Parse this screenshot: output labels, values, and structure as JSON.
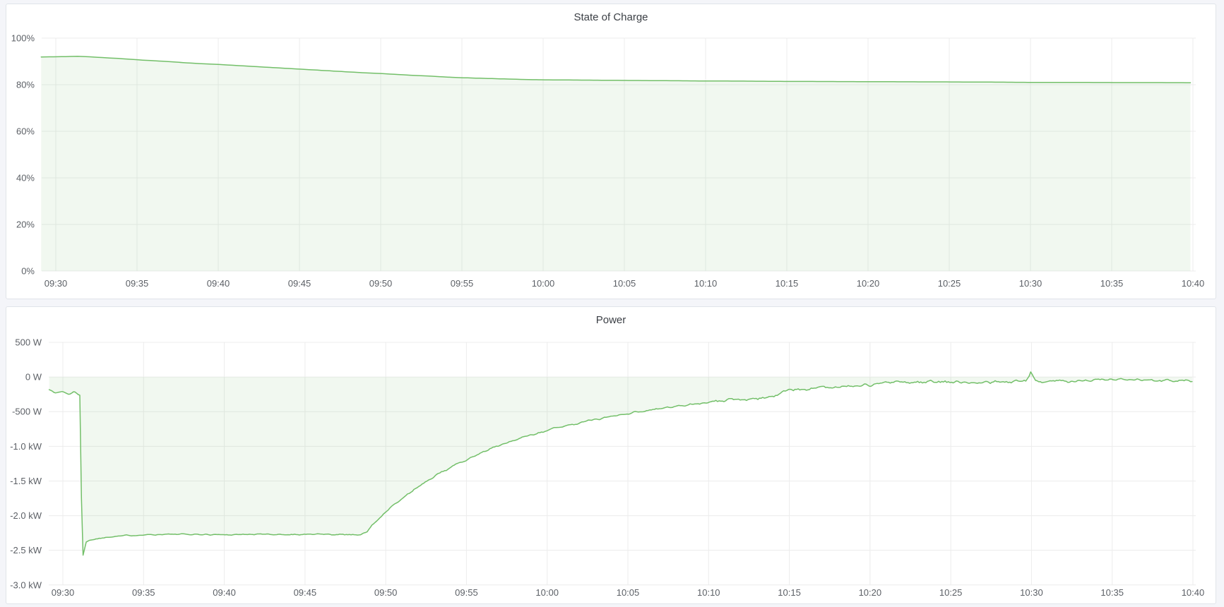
{
  "app": {
    "theme_background": "#f4f5f9",
    "panel_background": "#ffffff",
    "panel_border_color": "#e0e4e9",
    "grid_color": "#ececec",
    "axis_text_color": "#5c6066",
    "title_text_color": "#3b3f45",
    "accent_green": "#73bf69"
  },
  "panels": [
    {
      "title": "State of Charge"
    },
    {
      "title": "Power"
    }
  ],
  "chart_data": [
    {
      "type": "area",
      "title": "State of Charge",
      "xlabel": "",
      "ylabel": "",
      "legend": "none",
      "grid": true,
      "ylim": [
        0,
        100
      ],
      "y_ticks": [
        {
          "label": "0%",
          "value": 0
        },
        {
          "label": "20%",
          "value": 20
        },
        {
          "label": "40%",
          "value": 40
        },
        {
          "label": "60%",
          "value": 60
        },
        {
          "label": "80%",
          "value": 80
        },
        {
          "label": "100%",
          "value": 100
        }
      ],
      "x_ticks": [
        "09:30",
        "09:35",
        "09:40",
        "09:45",
        "09:50",
        "09:55",
        "10:00",
        "10:05",
        "10:10",
        "10:15",
        "10:20",
        "10:25",
        "10:30",
        "10:35",
        "10:40"
      ],
      "x_tick_interval_minutes": 5,
      "xlim_minutes": [
        -0.9,
        70
      ],
      "series": [
        {
          "name": "State of Charge",
          "unit": "percent",
          "color": "#73bf69",
          "fill_opacity": 0.1,
          "baseline_value": 0,
          "keypoints": [
            [
              -0.9,
              91.9
            ],
            [
              0,
              92.0
            ],
            [
              0.8,
              92.1
            ],
            [
              1.4,
              92.2
            ],
            [
              2,
              92.0
            ],
            [
              3,
              91.6
            ],
            [
              4,
              91.2
            ],
            [
              5,
              90.7
            ],
            [
              6,
              90.3
            ],
            [
              7,
              89.9
            ],
            [
              8,
              89.4
            ],
            [
              9,
              89.0
            ],
            [
              10,
              88.7
            ],
            [
              11,
              88.3
            ],
            [
              12,
              87.9
            ],
            [
              13,
              87.5
            ],
            [
              14,
              87.1
            ],
            [
              15,
              86.7
            ],
            [
              16,
              86.3
            ],
            [
              17,
              85.9
            ],
            [
              18,
              85.5
            ],
            [
              19,
              85.1
            ],
            [
              20,
              84.8
            ],
            [
              21,
              84.4
            ],
            [
              22,
              84.0
            ],
            [
              23,
              83.7
            ],
            [
              24,
              83.3
            ],
            [
              25,
              83.0
            ],
            [
              26,
              82.8
            ],
            [
              27,
              82.6
            ],
            [
              28,
              82.4
            ],
            [
              29,
              82.2
            ],
            [
              30,
              82.1
            ],
            [
              31,
              82.05
            ],
            [
              32,
              82.0
            ],
            [
              33,
              81.95
            ],
            [
              34,
              81.9
            ],
            [
              35,
              81.85
            ],
            [
              36,
              81.8
            ],
            [
              37,
              81.75
            ],
            [
              38,
              81.7
            ],
            [
              39,
              81.65
            ],
            [
              40,
              81.6
            ],
            [
              42,
              81.55
            ],
            [
              44,
              81.45
            ],
            [
              45,
              81.4
            ],
            [
              46,
              81.4
            ],
            [
              48,
              81.35
            ],
            [
              50,
              81.3
            ],
            [
              52,
              81.25
            ],
            [
              54,
              81.2
            ],
            [
              55,
              81.2
            ],
            [
              56,
              81.15
            ],
            [
              58,
              81.1
            ],
            [
              60,
              81.0
            ],
            [
              62,
              81.0
            ],
            [
              64,
              80.95
            ],
            [
              66,
              80.9
            ],
            [
              68,
              80.9
            ],
            [
              70,
              80.85
            ]
          ]
        }
      ]
    },
    {
      "type": "area",
      "title": "Power",
      "xlabel": "",
      "ylabel": "",
      "legend": "none",
      "grid": true,
      "ylim": [
        -3000,
        500
      ],
      "y_ticks": [
        {
          "label": "500 W",
          "value": 500
        },
        {
          "label": "0 W",
          "value": 0
        },
        {
          "label": "-500 W",
          "value": -500
        },
        {
          "label": "-1.0 kW",
          "value": -1000
        },
        {
          "label": "-1.5 kW",
          "value": -1500
        },
        {
          "label": "-2.0 kW",
          "value": -2000
        },
        {
          "label": "-2.5 kW",
          "value": -2500
        },
        {
          "label": "-3.0 kW",
          "value": -3000
        }
      ],
      "x_ticks": [
        "09:30",
        "09:35",
        "09:40",
        "09:45",
        "09:50",
        "09:55",
        "10:00",
        "10:05",
        "10:10",
        "10:15",
        "10:20",
        "10:25",
        "10:30",
        "10:35",
        "10:40"
      ],
      "x_tick_interval_minutes": 5,
      "xlim_minutes": [
        -0.85,
        70
      ],
      "series": [
        {
          "name": "Power",
          "unit": "watt",
          "color": "#73bf69",
          "fill_opacity": 0.1,
          "baseline_value": 0,
          "noise": {
            "seed": 1337,
            "step_minutes": 0.1,
            "zones": [
              {
                "from": -0.9,
                "to": 1.05,
                "amp": 14
              },
              {
                "from": 1.05,
                "to": 1.7,
                "amp": 0
              },
              {
                "from": 1.7,
                "to": 18.5,
                "amp": 13
              },
              {
                "from": 18.5,
                "to": 40,
                "amp": 20
              },
              {
                "from": 40,
                "to": 70,
                "amp": 32
              }
            ]
          },
          "keypoints": [
            [
              -0.85,
              -180
            ],
            [
              -0.5,
              -230
            ],
            [
              0,
              -210
            ],
            [
              0.4,
              -250
            ],
            [
              0.7,
              -215
            ],
            [
              1.0,
              -255
            ],
            [
              1.1,
              -270
            ],
            [
              1.18,
              -2640
            ],
            [
              1.3,
              -2520
            ],
            [
              1.45,
              -2380
            ],
            [
              1.7,
              -2350
            ],
            [
              2.2,
              -2330
            ],
            [
              3,
              -2300
            ],
            [
              4,
              -2285
            ],
            [
              5,
              -2275
            ],
            [
              6.5,
              -2270
            ],
            [
              8,
              -2270
            ],
            [
              10,
              -2275
            ],
            [
              12,
              -2268
            ],
            [
              14,
              -2272
            ],
            [
              16,
              -2268
            ],
            [
              17.5,
              -2272
            ],
            [
              18.5,
              -2272
            ],
            [
              18.8,
              -2240
            ],
            [
              19.2,
              -2130
            ],
            [
              19.6,
              -2040
            ],
            [
              20,
              -1950
            ],
            [
              20.5,
              -1850
            ],
            [
              21,
              -1760
            ],
            [
              21.5,
              -1670
            ],
            [
              22,
              -1590
            ],
            [
              22.5,
              -1510
            ],
            [
              23,
              -1440
            ],
            [
              23.5,
              -1370
            ],
            [
              24,
              -1305
            ],
            [
              24.5,
              -1245
            ],
            [
              25,
              -1190
            ],
            [
              25.5,
              -1135
            ],
            [
              26,
              -1085
            ],
            [
              26.5,
              -1035
            ],
            [
              27,
              -990
            ],
            [
              27.5,
              -950
            ],
            [
              28,
              -910
            ],
            [
              28.5,
              -870
            ],
            [
              29,
              -835
            ],
            [
              29.5,
              -800
            ],
            [
              30,
              -770
            ],
            [
              30.5,
              -740
            ],
            [
              31,
              -710
            ],
            [
              31.5,
              -685
            ],
            [
              32,
              -660
            ],
            [
              32.5,
              -635
            ],
            [
              33,
              -610
            ],
            [
              33.5,
              -590
            ],
            [
              34,
              -565
            ],
            [
              34.5,
              -545
            ],
            [
              35,
              -525
            ],
            [
              35.5,
              -505
            ],
            [
              36,
              -490
            ],
            [
              36.5,
              -470
            ],
            [
              37,
              -455
            ],
            [
              37.5,
              -440
            ],
            [
              38,
              -425
            ],
            [
              38.5,
              -410
            ],
            [
              39,
              -395
            ],
            [
              39.5,
              -385
            ],
            [
              40,
              -370
            ],
            [
              41,
              -345
            ],
            [
              42,
              -320
            ],
            [
              43,
              -300
            ],
            [
              44,
              -280
            ],
            [
              45,
              -190
            ],
            [
              46,
              -170
            ],
            [
              47,
              -155
            ],
            [
              48,
              -140
            ],
            [
              49,
              -130
            ],
            [
              50,
              -120
            ],
            [
              50.5,
              -90
            ],
            [
              51,
              -80
            ],
            [
              52,
              -75
            ],
            [
              53,
              -80
            ],
            [
              54,
              -70
            ],
            [
              55,
              -75
            ],
            [
              56,
              -70
            ],
            [
              57,
              -75
            ],
            [
              58,
              -70
            ],
            [
              59,
              -70
            ],
            [
              59.7,
              -50
            ],
            [
              59.95,
              60
            ],
            [
              60.2,
              -55
            ],
            [
              61,
              -55
            ],
            [
              62,
              -50
            ],
            [
              63,
              -55
            ],
            [
              64,
              -45
            ],
            [
              65,
              -50
            ],
            [
              66,
              -45
            ],
            [
              67,
              -50
            ],
            [
              68,
              -45
            ],
            [
              69,
              -50
            ],
            [
              69.6,
              -35
            ],
            [
              70,
              -75
            ]
          ]
        }
      ]
    }
  ]
}
